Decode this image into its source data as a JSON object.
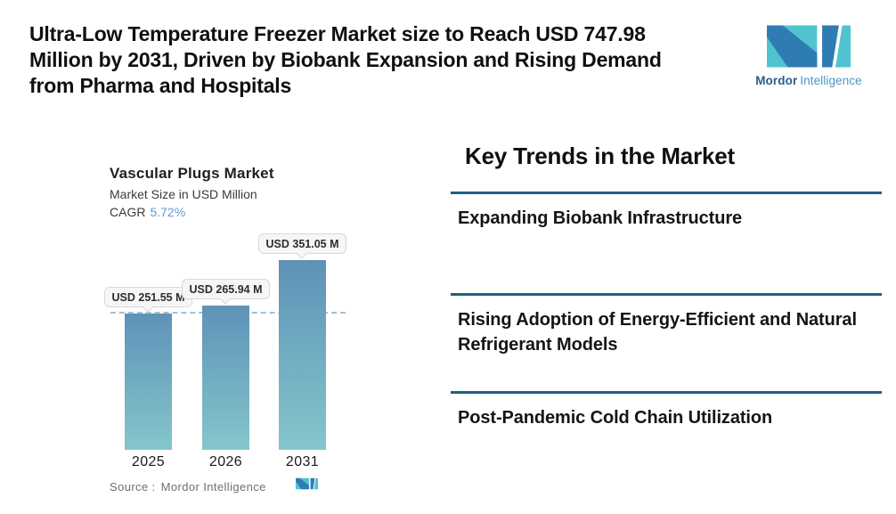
{
  "header": {
    "title_lines": [
      "Ultra-Low Temperature Freezer Market size to Reach USD 747.98",
      "Million by 2031, Driven by Biobank Expansion and Rising Demand",
      "from Pharma and Hospitals"
    ],
    "logo": {
      "brand_primary": "Mordor",
      "brand_secondary": "Intelligence"
    }
  },
  "chart_data": {
    "type": "bar",
    "title": "Vascular Plugs Market",
    "subtitle": "Market Size in USD Million",
    "cagr_label": "CAGR",
    "cagr_value": "5.72%",
    "categories": [
      "2025",
      "2026",
      "2031"
    ],
    "values": [
      251.55,
      265.94,
      351.05
    ],
    "value_labels": [
      "USD 251.55 M",
      "USD 265.94 M",
      "USD 351.05 M"
    ],
    "ylabel": "USD Million",
    "ylim": [
      0,
      360
    ],
    "grid": "off",
    "legend": "none",
    "reference_line": {
      "value": 251.55,
      "style": "dashed"
    },
    "source_label": "Source :",
    "source_value": "Mordor Intelligence"
  },
  "trends": {
    "heading": "Key Trends in the Market",
    "items": [
      {
        "label": "Expanding Biobank Infrastructure"
      },
      {
        "label": "Rising Adoption of Energy-Efficient and Natural Refrigerant Models"
      },
      {
        "label": "Post-Pandemic Cold Chain Utilization"
      }
    ]
  },
  "colors": {
    "accent_teal": "#4fc4cf",
    "accent_blue": "#2f7cb5",
    "brand_text_primary": "#2a5d87",
    "brand_text_secondary": "#4b96c8",
    "cagr_value": "#5b9bd5",
    "divider": "#205f83",
    "bar_gradient_top": "#5e92b8",
    "bar_gradient_bottom": "#85c6cb",
    "dashed_line": "#a3c0d6",
    "value_label_bg": "#f6f6f6",
    "value_label_border": "#d9d9d9"
  }
}
